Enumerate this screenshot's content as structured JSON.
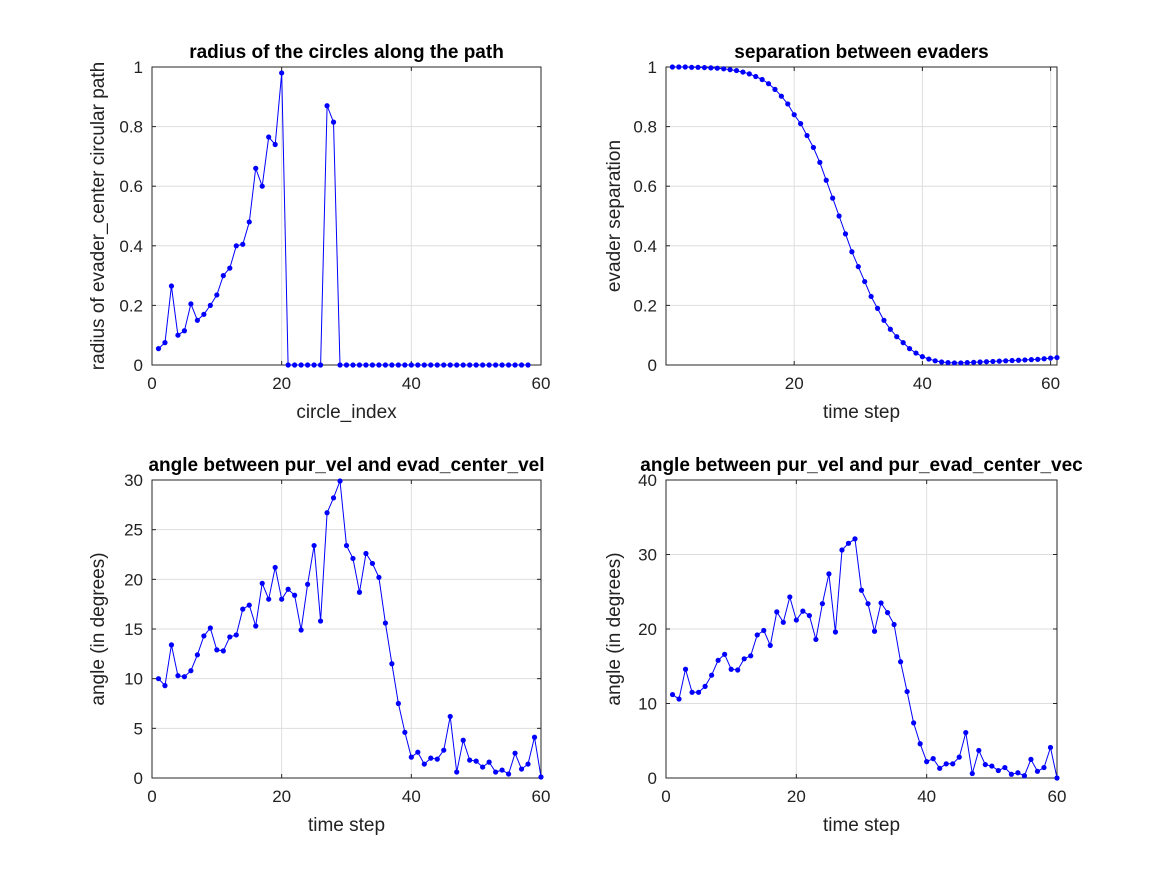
{
  "chart_data": [
    {
      "type": "line",
      "title": "radius of the circles along the path",
      "xlabel": "circle_index",
      "ylabel": "radius of evader_center circular path",
      "xlim": [
        0,
        60
      ],
      "ylim": [
        0,
        1
      ],
      "xticks": [
        "0",
        "20",
        "40",
        "60"
      ],
      "yticks": [
        "0",
        "0.2",
        "0.4",
        "0.6",
        "0.8",
        "1"
      ],
      "xtick_values": [
        0,
        20,
        40,
        60
      ],
      "ytick_values": [
        0,
        0.2,
        0.4,
        0.6,
        0.8,
        1
      ],
      "grid": true,
      "color": "#0000ff",
      "x": [
        1,
        2,
        3,
        4,
        5,
        6,
        7,
        8,
        9,
        10,
        11,
        12,
        13,
        14,
        15,
        16,
        17,
        18,
        19,
        20,
        21,
        22,
        23,
        24,
        25,
        26,
        27,
        28,
        29,
        30,
        31,
        32,
        33,
        34,
        35,
        36,
        37,
        38,
        39,
        40,
        41,
        42,
        43,
        44,
        45,
        46,
        47,
        48,
        49,
        50,
        51,
        52,
        53,
        54,
        55,
        56,
        57,
        58
      ],
      "y": [
        0.055,
        0.075,
        0.265,
        0.1,
        0.115,
        0.205,
        0.15,
        0.17,
        0.2,
        0.235,
        0.3,
        0.325,
        0.4,
        0.405,
        0.48,
        0.66,
        0.6,
        0.765,
        0.74,
        0.98,
        0,
        0,
        0,
        0,
        0,
        0,
        0.87,
        0.815,
        0,
        0,
        0,
        0,
        0,
        0,
        0,
        0,
        0,
        0,
        0,
        0,
        0,
        0,
        0,
        0,
        0,
        0,
        0,
        0,
        0,
        0,
        0,
        0,
        0,
        0,
        0,
        0,
        0,
        0
      ]
    },
    {
      "type": "line",
      "title": "separation between evaders",
      "xlabel": "time step",
      "ylabel": "evader separation",
      "xlim": [
        0,
        61
      ],
      "ylim": [
        0,
        1
      ],
      "xticks": [
        "20",
        "40",
        "60"
      ],
      "yticks": [
        "0",
        "0.2",
        "0.4",
        "0.6",
        "0.8",
        "1"
      ],
      "xtick_values": [
        20,
        40,
        60
      ],
      "ytick_values": [
        0,
        0.2,
        0.4,
        0.6,
        0.8,
        1
      ],
      "grid": true,
      "color": "#0000ff",
      "x": [
        1,
        2,
        3,
        4,
        5,
        6,
        7,
        8,
        9,
        10,
        11,
        12,
        13,
        14,
        15,
        16,
        17,
        18,
        19,
        20,
        21,
        22,
        23,
        24,
        25,
        26,
        27,
        28,
        29,
        30,
        31,
        32,
        33,
        34,
        35,
        36,
        37,
        38,
        39,
        40,
        41,
        42,
        43,
        44,
        45,
        46,
        47,
        48,
        49,
        50,
        51,
        52,
        53,
        54,
        55,
        56,
        57,
        58,
        59,
        60,
        61
      ],
      "y": [
        1.0,
        1.0,
        1.0,
        0.999,
        0.999,
        0.998,
        0.997,
        0.996,
        0.994,
        0.991,
        0.988,
        0.983,
        0.977,
        0.968,
        0.958,
        0.944,
        0.925,
        0.902,
        0.876,
        0.84,
        0.81,
        0.77,
        0.73,
        0.68,
        0.62,
        0.56,
        0.5,
        0.44,
        0.38,
        0.33,
        0.28,
        0.23,
        0.19,
        0.15,
        0.12,
        0.095,
        0.075,
        0.055,
        0.04,
        0.028,
        0.02,
        0.014,
        0.01,
        0.008,
        0.007,
        0.007,
        0.008,
        0.009,
        0.01,
        0.011,
        0.012,
        0.013,
        0.014,
        0.015,
        0.016,
        0.017,
        0.018,
        0.019,
        0.021,
        0.023,
        0.025
      ]
    },
    {
      "type": "line",
      "title": "angle between pur_vel and evad_center_vel",
      "xlabel": "time step",
      "ylabel": "angle (in degrees)",
      "xlim": [
        0,
        60
      ],
      "ylim": [
        0,
        30
      ],
      "xticks": [
        "0",
        "20",
        "40",
        "60"
      ],
      "yticks": [
        "0",
        "5",
        "10",
        "15",
        "20",
        "25",
        "30"
      ],
      "xtick_values": [
        0,
        20,
        40,
        60
      ],
      "ytick_values": [
        0,
        5,
        10,
        15,
        20,
        25,
        30
      ],
      "grid": true,
      "color": "#0000ff",
      "x": [
        1,
        2,
        3,
        4,
        5,
        6,
        7,
        8,
        9,
        10,
        11,
        12,
        13,
        14,
        15,
        16,
        17,
        18,
        19,
        20,
        21,
        22,
        23,
        24,
        25,
        26,
        27,
        28,
        29,
        30,
        31,
        32,
        33,
        34,
        35,
        36,
        37,
        38,
        39,
        40,
        41,
        42,
        43,
        44,
        45,
        46,
        47,
        48,
        49,
        50,
        51,
        52,
        53,
        54,
        55,
        56,
        57,
        58,
        59,
        60
      ],
      "y": [
        10.0,
        9.3,
        13.4,
        10.3,
        10.2,
        10.8,
        12.4,
        14.3,
        15.1,
        12.9,
        12.8,
        14.2,
        14.4,
        17.0,
        17.4,
        15.3,
        19.6,
        18.0,
        21.2,
        18.0,
        19.0,
        18.4,
        14.9,
        19.5,
        23.4,
        15.8,
        26.7,
        28.2,
        29.9,
        23.4,
        22.1,
        18.7,
        22.6,
        21.6,
        20.2,
        15.6,
        11.5,
        7.5,
        4.6,
        2.1,
        2.6,
        1.4,
        2.0,
        1.9,
        2.8,
        6.2,
        0.6,
        3.8,
        1.8,
        1.7,
        1.1,
        1.6,
        0.6,
        0.8,
        0.4,
        2.5,
        0.9,
        1.4,
        4.1,
        0.1
      ]
    },
    {
      "type": "line",
      "title": "angle between pur_vel and pur_evad_center_vec",
      "xlabel": "time step",
      "ylabel": "angle (in degrees)",
      "xlim": [
        0,
        60
      ],
      "ylim": [
        0,
        40
      ],
      "xticks": [
        "0",
        "20",
        "40",
        "60"
      ],
      "yticks": [
        "0",
        "10",
        "20",
        "30",
        "40"
      ],
      "xtick_values": [
        0,
        20,
        40,
        60
      ],
      "ytick_values": [
        0,
        10,
        20,
        30,
        40
      ],
      "grid": true,
      "color": "#0000ff",
      "x": [
        1,
        2,
        3,
        4,
        5,
        6,
        7,
        8,
        9,
        10,
        11,
        12,
        13,
        14,
        15,
        16,
        17,
        18,
        19,
        20,
        21,
        22,
        23,
        24,
        25,
        26,
        27,
        28,
        29,
        30,
        31,
        32,
        33,
        34,
        35,
        36,
        37,
        38,
        39,
        40,
        41,
        42,
        43,
        44,
        45,
        46,
        47,
        48,
        49,
        50,
        51,
        52,
        53,
        54,
        55,
        56,
        57,
        58,
        59,
        60
      ],
      "y": [
        11.2,
        10.6,
        14.6,
        11.5,
        11.5,
        12.3,
        13.8,
        15.8,
        16.6,
        14.6,
        14.5,
        16.0,
        16.4,
        19.2,
        19.8,
        17.8,
        22.3,
        20.9,
        24.3,
        21.2,
        22.4,
        21.8,
        18.6,
        23.4,
        27.4,
        19.6,
        30.6,
        31.5,
        32.1,
        25.2,
        23.4,
        19.7,
        23.5,
        22.2,
        20.6,
        15.6,
        11.6,
        7.4,
        4.6,
        2.2,
        2.6,
        1.3,
        1.9,
        1.9,
        2.8,
        6.1,
        0.6,
        3.7,
        1.8,
        1.6,
        1.0,
        1.4,
        0.5,
        0.7,
        0.3,
        2.5,
        0.9,
        1.4,
        4.1,
        0.0
      ]
    }
  ]
}
